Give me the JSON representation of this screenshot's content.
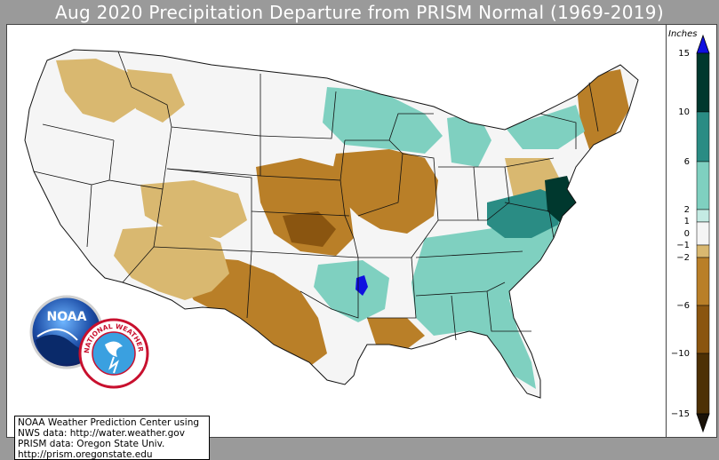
{
  "title": "Aug 2020 Precipitation Departure from PRISM Normal (1969-2019)",
  "legend": {
    "units": "Inches",
    "ticks": [
      "15",
      "10",
      "6",
      "2",
      "1",
      "0",
      "−1",
      "−2",
      "−6",
      "−10",
      "−15"
    ],
    "colors": {
      "extreme_wet": "#1010e0",
      "wet_10_15": "#00382e",
      "wet_6_10": "#2a8c84",
      "wet_2_6": "#7fd0c0",
      "wet_1_2": "#c4ebe3",
      "near_normal": "#f5f5f5",
      "dry_1_2": "#d9b870",
      "dry_2_6": "#b97f28",
      "dry_6_10": "#8a5510",
      "dry_10_15": "#4d3005"
    }
  },
  "credits": {
    "line1": "NOAA Weather Prediction Center using",
    "line2": "NWS data: http://water.weather.gov",
    "line3": "PRISM data: Oregon State Univ.",
    "line4": "http://prism.oregonstate.edu"
  },
  "logos": {
    "noaa_text": "NOAA",
    "nws_text": "NATIONAL WEATHER SERVICE"
  }
}
